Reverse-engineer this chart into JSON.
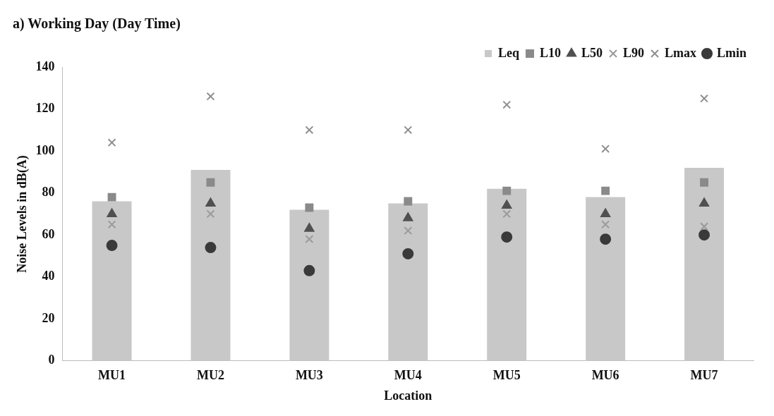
{
  "chart_data": {
    "type": "bar",
    "title": "a) Working Day (Day Time)",
    "xlabel": "Location",
    "ylabel": "Noise Levels in dB(A)",
    "categories": [
      "MU1",
      "MU2",
      "MU3",
      "MU4",
      "MU5",
      "MU6",
      "MU7"
    ],
    "series": [
      {
        "name": "Leq",
        "color": "#c8c8c8",
        "values": [
          76,
          91,
          72,
          75,
          82,
          78,
          92
        ]
      },
      {
        "name": "L10",
        "type": "scatter",
        "marker": "square",
        "color": "#8a8a8a",
        "x": [
          "MU1",
          "MU2",
          "MU3",
          "MU4",
          "MU5",
          "MU6",
          "MU7"
        ],
        "values": [
          78,
          85,
          73,
          76,
          81,
          81,
          85
        ]
      },
      {
        "name": "L50",
        "type": "scatter",
        "marker": "triangle",
        "color": "#505050",
        "x": [
          "MU1",
          "MU2",
          "MU3",
          "MU4",
          "MU5",
          "MU6",
          "MU7"
        ],
        "values": [
          70,
          75,
          63,
          68,
          74,
          70,
          75
        ]
      },
      {
        "name": "L90",
        "type": "scatter",
        "marker": "cross",
        "color": "#9a9a9a",
        "x": [
          "MU1",
          "MU2",
          "MU3",
          "MU4",
          "MU5",
          "MU6",
          "MU7"
        ],
        "values": [
          65,
          70,
          58,
          62,
          70,
          65,
          64
        ]
      },
      {
        "name": "Lmax",
        "type": "scatter",
        "marker": "cross",
        "color": "#8f8f8f",
        "x": [
          "MU1",
          "MU2",
          "MU3",
          "MU4",
          "MU5",
          "MU6",
          "MU7"
        ],
        "values": [
          104,
          126,
          110,
          110,
          122,
          101,
          125
        ]
      },
      {
        "name": "Lmin",
        "type": "scatter",
        "marker": "circle",
        "color": "#3a3a3a",
        "x": [
          "MU1",
          "MU2",
          "MU3",
          "MU4",
          "MU5",
          "MU6",
          "MU7"
        ],
        "values": [
          55,
          54,
          43,
          51,
          59,
          58,
          60
        ]
      }
    ],
    "ylim": [
      0,
      140
    ],
    "yticks": [
      0,
      20,
      40,
      60,
      80,
      100,
      120,
      140
    ],
    "grid": false,
    "legend": "top right"
  }
}
